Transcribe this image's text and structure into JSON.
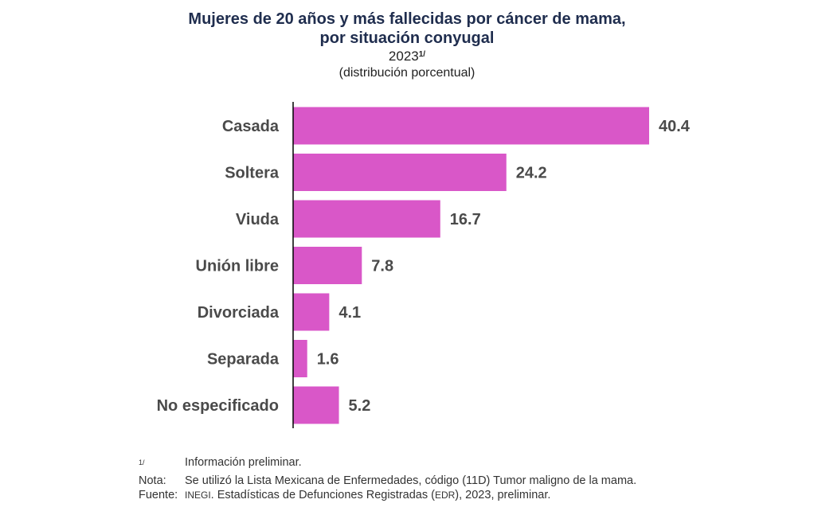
{
  "title": {
    "line1": "Mujeres de 20 años y más fallecidas por cáncer de mama,",
    "line2": "por situación conyugal",
    "year": "2023",
    "year_mark": "1/",
    "unit": "(distribución porcentual)"
  },
  "chart_data": {
    "type": "bar",
    "orientation": "horizontal",
    "categories": [
      "Casada",
      "Soltera",
      "Viuda",
      "Unión libre",
      "Divorciada",
      "Separada",
      "No especificado"
    ],
    "values": [
      40.4,
      24.2,
      16.7,
      7.8,
      4.1,
      1.6,
      5.2
    ],
    "value_labels": [
      "40.4",
      "24.2",
      "16.7",
      "7.8",
      "4.1",
      "1.6",
      "5.2"
    ],
    "xlim": [
      0,
      41
    ],
    "bar_color": "#d957c8",
    "axis_color": "#000000"
  },
  "notes": {
    "footnote_mark": "1/",
    "footnote_text": "Información preliminar.",
    "nota_label": "Nota:",
    "nota_text": "Se utilizó la Lista Mexicana de Enfermedades, código (11D) Tumor maligno de la mama.",
    "fuente_label": "Fuente:",
    "fuente_inegi": "INEGI",
    "fuente_text_1": ". Estadísticas de Defunciones Registradas (",
    "fuente_edr": "EDR",
    "fuente_text_2": "), 2023, preliminar."
  }
}
